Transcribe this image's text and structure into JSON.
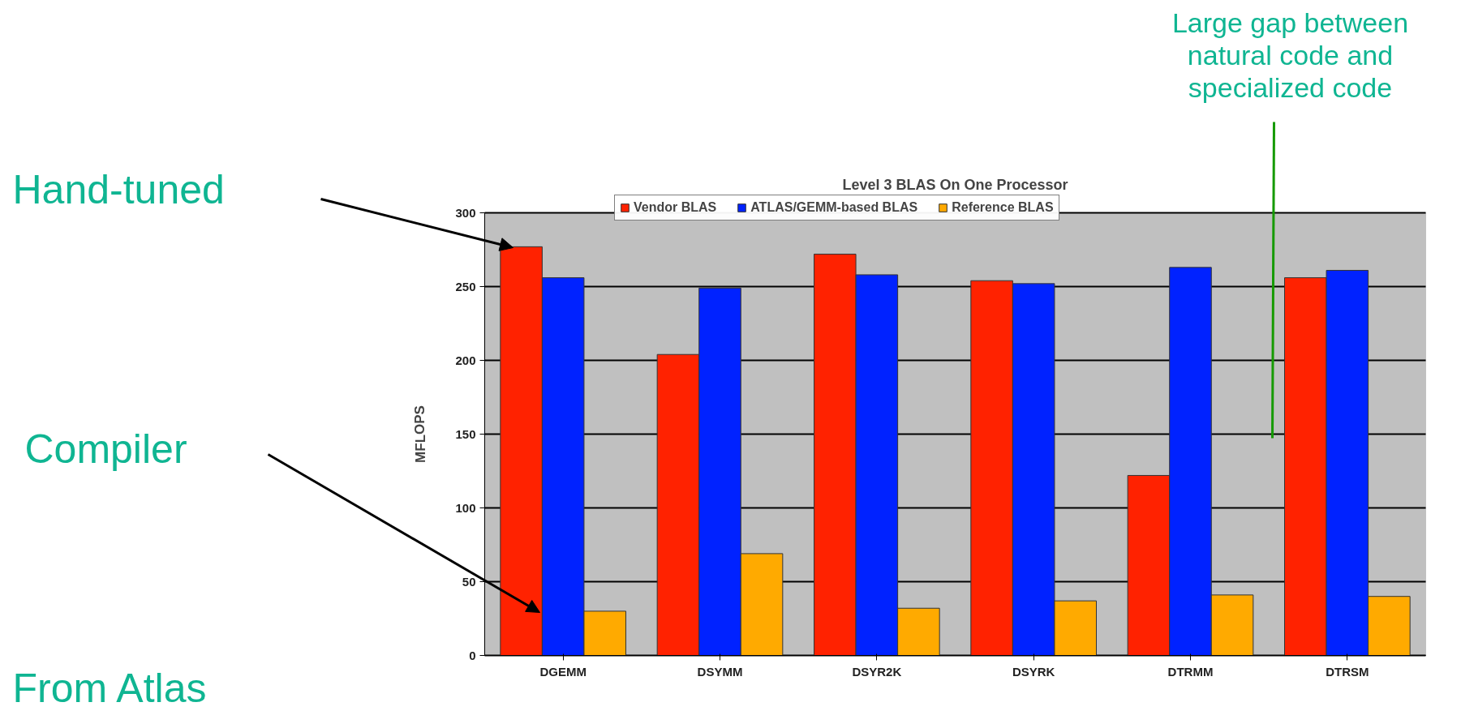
{
  "chart_data": {
    "type": "bar",
    "title": "Level 3 BLAS On One Processor",
    "ylabel": "MFLOPS",
    "categories": [
      "DGEMM",
      "DSYMM",
      "DSYR2K",
      "DSYRK",
      "DTRMM",
      "DTRSM"
    ],
    "series": [
      {
        "name": "Vendor BLAS",
        "color": "#ff2200",
        "values": [
          277,
          204,
          272,
          254,
          122,
          256
        ]
      },
      {
        "name": "ATLAS/GEMM-based BLAS",
        "color": "#0022ff",
        "values": [
          256,
          249,
          258,
          252,
          263,
          261
        ]
      },
      {
        "name": "Reference BLAS",
        "color": "#ffaa00",
        "values": [
          30,
          69,
          32,
          37,
          41,
          40
        ]
      }
    ],
    "ylim": [
      0,
      300
    ],
    "yticks": [
      0,
      50,
      100,
      150,
      200,
      250,
      300
    ],
    "grid": "y",
    "legend": "top",
    "annotations": [
      "Hand-tuned",
      "Compiler",
      "Large gap between natural code and specialized code",
      "From Atlas"
    ]
  }
}
